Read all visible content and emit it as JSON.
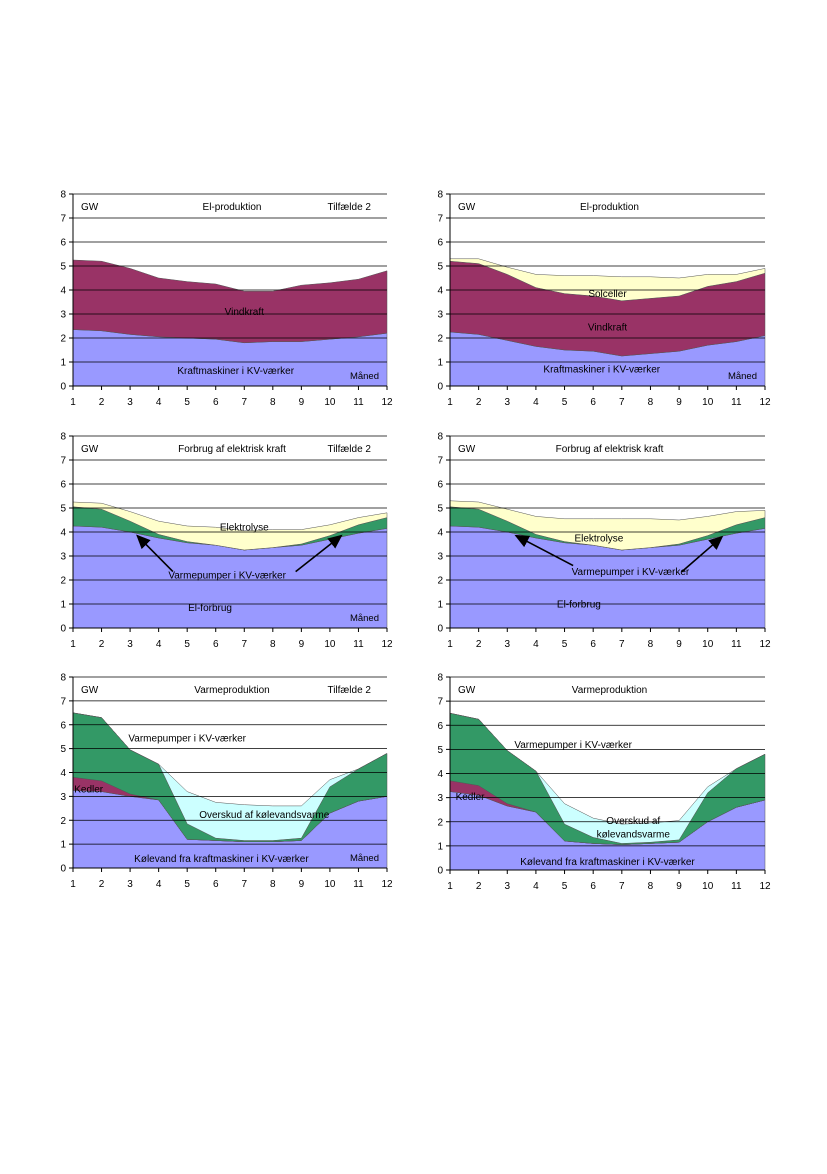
{
  "colors": {
    "blue": "#9999ff",
    "maroon": "#993366",
    "green": "#339966",
    "yellow": "#ffffcc",
    "cyan": "#ccffff"
  },
  "chart_data": [
    {
      "type": "area",
      "title": "El-produktion",
      "case_label": "Tilfælde  2",
      "unit_label": "GW",
      "xlabel": "Måned",
      "x": [
        1,
        2,
        3,
        4,
        5,
        6,
        7,
        8,
        9,
        10,
        11,
        12
      ],
      "ylim": [
        0,
        8
      ],
      "yticks": [
        "0",
        "1",
        "2",
        "3",
        "4",
        "5",
        "6",
        "7",
        "8"
      ],
      "xticks": [
        "1",
        "2",
        "3",
        "4",
        "5",
        "6",
        "7",
        "8",
        "9",
        "10",
        "11",
        "12"
      ],
      "grid": true,
      "series": [
        {
          "name": "Kraftmaskiner i KV-værker",
          "color": "blue",
          "values": [
            2.35,
            2.3,
            2.15,
            2.05,
            2.0,
            1.95,
            1.8,
            1.85,
            1.85,
            1.95,
            2.05,
            2.2
          ]
        },
        {
          "name": "Vindkraft",
          "color": "maroon",
          "values": [
            2.9,
            2.9,
            2.75,
            2.45,
            2.35,
            2.3,
            2.15,
            2.1,
            2.35,
            2.35,
            2.4,
            2.6
          ]
        }
      ],
      "labels": [
        {
          "text": "Vindkraft",
          "x": 7.0,
          "y": 3.1
        },
        {
          "text": "Kraftmaskiner i KV-værker",
          "x": 6.7,
          "y": 0.65
        }
      ],
      "arrows": []
    },
    {
      "type": "area",
      "title": "El-produktion",
      "case_label": "",
      "unit_label": "GW",
      "xlabel": "Måned",
      "x": [
        1,
        2,
        3,
        4,
        5,
        6,
        7,
        8,
        9,
        10,
        11,
        12
      ],
      "ylim": [
        0,
        8
      ],
      "yticks": [
        "0",
        "1",
        "2",
        "3",
        "4",
        "5",
        "6",
        "7",
        "8"
      ],
      "xticks": [
        "1",
        "2",
        "3",
        "4",
        "5",
        "6",
        "7",
        "8",
        "9",
        "10",
        "11",
        "12"
      ],
      "grid": true,
      "series": [
        {
          "name": "Kraftmaskiner i KV-værker",
          "color": "blue",
          "values": [
            2.25,
            2.15,
            1.9,
            1.65,
            1.5,
            1.45,
            1.25,
            1.35,
            1.45,
            1.7,
            1.85,
            2.1
          ]
        },
        {
          "name": "Vindkraft",
          "color": "maroon",
          "values": [
            2.95,
            2.95,
            2.75,
            2.45,
            2.35,
            2.3,
            2.3,
            2.3,
            2.3,
            2.45,
            2.5,
            2.6
          ]
        },
        {
          "name": "Solceller",
          "color": "yellow",
          "values": [
            0.1,
            0.2,
            0.3,
            0.55,
            0.75,
            0.85,
            1.0,
            0.9,
            0.75,
            0.5,
            0.3,
            0.2
          ]
        }
      ],
      "labels": [
        {
          "text": "Solceller",
          "x": 6.5,
          "y": 3.85
        },
        {
          "text": "Vindkraft",
          "x": 6.5,
          "y": 2.45
        },
        {
          "text": "Kraftmaskiner i KV-værker",
          "x": 6.3,
          "y": 0.7
        }
      ],
      "arrows": []
    },
    {
      "type": "area",
      "title": "Forbrug af elektrisk kraft",
      "case_label": "Tilfælde  2",
      "unit_label": "GW",
      "xlabel": "Måned",
      "x": [
        1,
        2,
        3,
        4,
        5,
        6,
        7,
        8,
        9,
        10,
        11,
        12
      ],
      "ylim": [
        0,
        8
      ],
      "yticks": [
        "0",
        "1",
        "2",
        "3",
        "4",
        "5",
        "6",
        "7",
        "8"
      ],
      "xticks": [
        "1",
        "2",
        "3",
        "4",
        "5",
        "6",
        "7",
        "8",
        "9",
        "10",
        "11",
        "12"
      ],
      "grid": true,
      "series": [
        {
          "name": "El-forbrug",
          "color": "blue",
          "values": [
            4.25,
            4.2,
            4.0,
            3.75,
            3.55,
            3.45,
            3.25,
            3.35,
            3.45,
            3.7,
            3.95,
            4.15
          ]
        },
        {
          "name": "Varmepumper i KV-værker",
          "color": "green",
          "values": [
            0.8,
            0.75,
            0.45,
            0.15,
            0.05,
            0.0,
            0.0,
            0.0,
            0.05,
            0.15,
            0.35,
            0.45
          ]
        },
        {
          "name": "Elektrolyse",
          "color": "yellow",
          "values": [
            0.2,
            0.25,
            0.4,
            0.55,
            0.65,
            0.75,
            0.8,
            0.75,
            0.6,
            0.45,
            0.3,
            0.2
          ]
        }
      ],
      "labels": [
        {
          "text": "Elektrolyse",
          "x": 7.0,
          "y": 4.2
        },
        {
          "text": "Varmepumper i KV-værker",
          "x": 6.4,
          "y": 2.2
        },
        {
          "text": "El-forbrug",
          "x": 5.8,
          "y": 0.85
        }
      ],
      "arrows": [
        {
          "from": [
            4.5,
            2.35
          ],
          "to": [
            3.25,
            3.85
          ]
        },
        {
          "from": [
            8.8,
            2.35
          ],
          "to": [
            10.4,
            3.85
          ]
        }
      ]
    },
    {
      "type": "area",
      "title": "Forbrug af elektrisk kraft",
      "case_label": "",
      "unit_label": "GW",
      "xlabel": "",
      "x": [
        1,
        2,
        3,
        4,
        5,
        6,
        7,
        8,
        9,
        10,
        11,
        12
      ],
      "ylim": [
        0,
        8
      ],
      "yticks": [
        "0",
        "1",
        "2",
        "3",
        "4",
        "5",
        "6",
        "7",
        "8"
      ],
      "xticks": [
        "1",
        "2",
        "3",
        "4",
        "5",
        "6",
        "7",
        "8",
        "9",
        "10",
        "11",
        "12"
      ],
      "grid": true,
      "series": [
        {
          "name": "El-forbrug",
          "color": "blue",
          "values": [
            4.25,
            4.2,
            4.0,
            3.75,
            3.55,
            3.45,
            3.25,
            3.35,
            3.45,
            3.7,
            3.95,
            4.15
          ]
        },
        {
          "name": "Varmepumper i KV-værker",
          "color": "green",
          "values": [
            0.8,
            0.75,
            0.45,
            0.15,
            0.05,
            0.0,
            0.0,
            0.0,
            0.05,
            0.15,
            0.35,
            0.45
          ]
        },
        {
          "name": "Elektrolyse",
          "color": "yellow",
          "values": [
            0.25,
            0.3,
            0.5,
            0.75,
            0.95,
            1.1,
            1.3,
            1.2,
            1.0,
            0.8,
            0.55,
            0.3
          ]
        }
      ],
      "labels": [
        {
          "text": "Elektrolyse",
          "x": 6.2,
          "y": 3.75
        },
        {
          "text": "Varmepumper i KV-værker",
          "x": 7.3,
          "y": 2.35
        },
        {
          "text": "El-forbrug",
          "x": 5.5,
          "y": 1.0
        }
      ],
      "arrows": [
        {
          "from": [
            5.3,
            2.6
          ],
          "to": [
            3.3,
            3.85
          ]
        },
        {
          "from": [
            9.1,
            2.35
          ],
          "to": [
            10.5,
            3.8
          ]
        }
      ]
    },
    {
      "type": "area",
      "title": "Varmeproduktion",
      "case_label": "Tilfælde  2",
      "unit_label": "GW",
      "xlabel": "Måned",
      "x": [
        1,
        2,
        3,
        4,
        5,
        6,
        7,
        8,
        9,
        10,
        11,
        12
      ],
      "ylim": [
        0,
        8
      ],
      "yticks": [
        "0",
        "1",
        "2",
        "3",
        "4",
        "5",
        "6",
        "7",
        "8"
      ],
      "xticks": [
        "1",
        "2",
        "3",
        "4",
        "5",
        "6",
        "7",
        "8",
        "9",
        "10",
        "11",
        "12"
      ],
      "grid": true,
      "series": [
        {
          "name": "Kølevand fra kraftmaskiner i KV-værker",
          "color": "blue",
          "values": [
            3.25,
            3.2,
            3.0,
            2.85,
            1.2,
            1.15,
            1.1,
            1.1,
            1.15,
            2.3,
            2.8,
            3.0
          ]
        },
        {
          "name": "Kedler",
          "color": "maroon",
          "values": [
            0.55,
            0.45,
            0.1,
            0.0,
            0.0,
            0.0,
            0.0,
            0.0,
            0.0,
            0.0,
            0.0,
            0.0
          ]
        },
        {
          "name": "Varmepumper i KV-værker",
          "color": "green",
          "values": [
            2.7,
            2.65,
            1.85,
            1.5,
            0.65,
            0.1,
            0.05,
            0.05,
            0.1,
            1.1,
            1.35,
            1.8
          ]
        },
        {
          "name": "Overskud af kølevandsvarme",
          "color": "cyan",
          "values": [
            0,
            0,
            0,
            0,
            1.35,
            1.5,
            1.5,
            1.45,
            1.35,
            0.3,
            0,
            0
          ]
        }
      ],
      "labels": [
        {
          "text": "Varmepumper i KV-værker",
          "x": 5.0,
          "y": 5.45
        },
        {
          "text": "Kedler",
          "x": 1.55,
          "y": 3.3
        },
        {
          "text": "Overskud af kølevandsvarme",
          "x": 7.7,
          "y": 2.25
        },
        {
          "text": "Kølevand fra kraftmaskiner i KV-værker",
          "x": 6.2,
          "y": 0.4
        }
      ],
      "arrows": []
    },
    {
      "type": "area",
      "title": "Varmeproduktion",
      "case_label": "",
      "unit_label": "GW",
      "xlabel": "",
      "x": [
        1,
        2,
        3,
        4,
        5,
        6,
        7,
        8,
        9,
        10,
        11,
        12
      ],
      "ylim": [
        0,
        8
      ],
      "yticks": [
        "0",
        "1",
        "2",
        "3",
        "4",
        "5",
        "6",
        "7",
        "8"
      ],
      "xticks": [
        "1",
        "2",
        "3",
        "4",
        "5",
        "6",
        "7",
        "8",
        "9",
        "10",
        "11",
        "12"
      ],
      "grid": true,
      "series": [
        {
          "name": "Kølevand fra kraftmaskiner i KV-værker",
          "color": "blue",
          "values": [
            3.25,
            3.1,
            2.65,
            2.4,
            1.2,
            1.1,
            1.05,
            1.1,
            1.15,
            2.0,
            2.6,
            2.9
          ]
        },
        {
          "name": "Kedler",
          "color": "maroon",
          "values": [
            0.45,
            0.4,
            0.1,
            0.0,
            0.0,
            0.0,
            0.0,
            0.0,
            0.0,
            0.0,
            0.0,
            0.0
          ]
        },
        {
          "name": "Varmepumper i KV-værker",
          "color": "green",
          "values": [
            2.8,
            2.75,
            2.2,
            1.7,
            0.7,
            0.25,
            0.05,
            0.05,
            0.1,
            1.2,
            1.6,
            1.9
          ]
        },
        {
          "name": "Overskud af kølevandsvarme",
          "color": "cyan",
          "values": [
            0,
            0,
            0,
            0,
            0.85,
            0.8,
            0.8,
            0.8,
            0.8,
            0.25,
            0,
            0
          ]
        }
      ],
      "labels": [
        {
          "text": "Varmepumper i KV-værker",
          "x": 5.3,
          "y": 5.2
        },
        {
          "text": "Kedler",
          "x": 1.7,
          "y": 3.05
        },
        {
          "text": "Overskud af",
          "x": 7.4,
          "y": 2.05
        },
        {
          "text": "kølevandsvarme",
          "x": 7.4,
          "y": 1.5
        },
        {
          "text": "Kølevand fra kraftmaskiner i KV-værker",
          "x": 6.5,
          "y": 0.35
        }
      ],
      "arrows": []
    }
  ]
}
